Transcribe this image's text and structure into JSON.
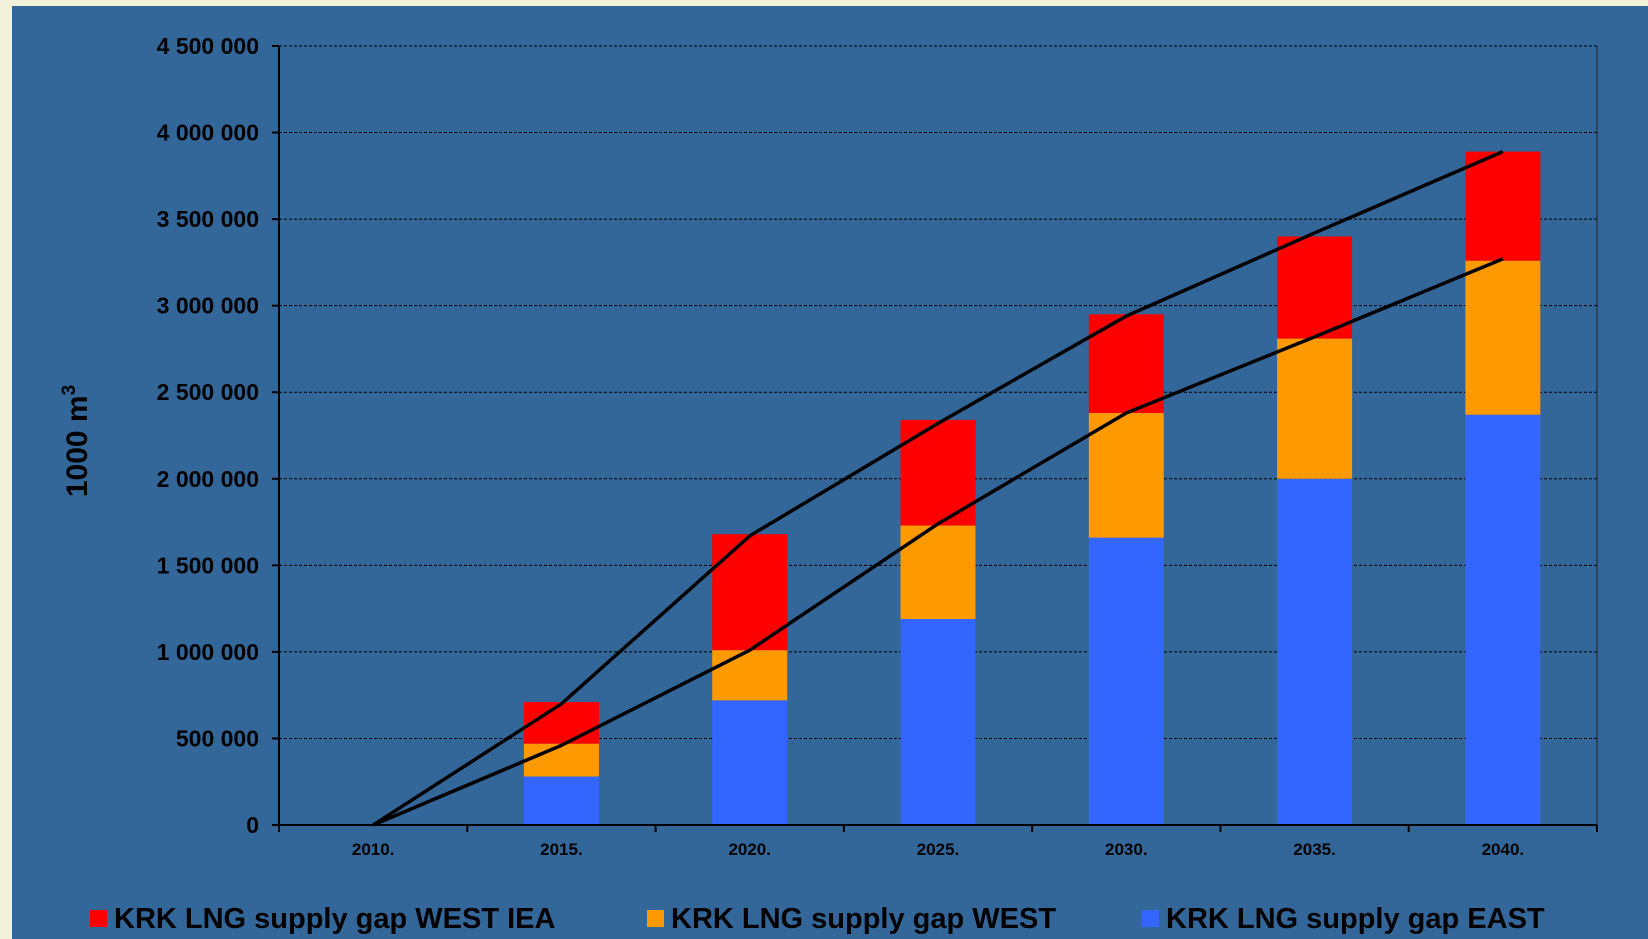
{
  "chart_data": {
    "type": "bar",
    "stacked": true,
    "categories": [
      "2010.",
      "2015.",
      "2020.",
      "2025.",
      "2030.",
      "2035.",
      "2040."
    ],
    "ylabel": "1000 m",
    "ylabel_superscript": "3",
    "ylim": [
      0,
      4500000
    ],
    "yticks": [
      0,
      500000,
      1000000,
      1500000,
      2000000,
      2500000,
      3000000,
      3500000,
      4000000,
      4500000
    ],
    "ytick_labels": [
      "0",
      "500 000",
      "1 000 000",
      "1 500 000",
      "2 000 000",
      "2 500 000",
      "3 000 000",
      "3 500 000",
      "4 000 000",
      "4 500 000"
    ],
    "grid": true,
    "series": [
      {
        "name": "KRK LNG supply gap EAST",
        "color": "#3366ff",
        "values": [
          0,
          280000,
          720000,
          1190000,
          1660000,
          2000000,
          2370000
        ]
      },
      {
        "name": "KRK LNG supply gap WEST",
        "color": "#ff9900",
        "values": [
          0,
          190000,
          290000,
          540000,
          720000,
          810000,
          890000
        ]
      },
      {
        "name": "KRK LNG supply gap WEST IEA",
        "color": "#ff0000",
        "values": [
          0,
          240000,
          670000,
          610000,
          570000,
          590000,
          630000
        ]
      }
    ],
    "lines": [
      {
        "color": "#000000",
        "values": [
          0,
          700000,
          1670000,
          2320000,
          2940000,
          3420000,
          3890000
        ]
      },
      {
        "color": "#000000",
        "values": [
          0,
          460000,
          1010000,
          1740000,
          2380000,
          2820000,
          3270000
        ]
      }
    ],
    "legend": {
      "placement": "bottom",
      "order": [
        "KRK LNG supply gap WEST IEA",
        "KRK LNG supply gap WEST",
        "KRK LNG supply gap EAST"
      ]
    },
    "background": "#336699"
  }
}
